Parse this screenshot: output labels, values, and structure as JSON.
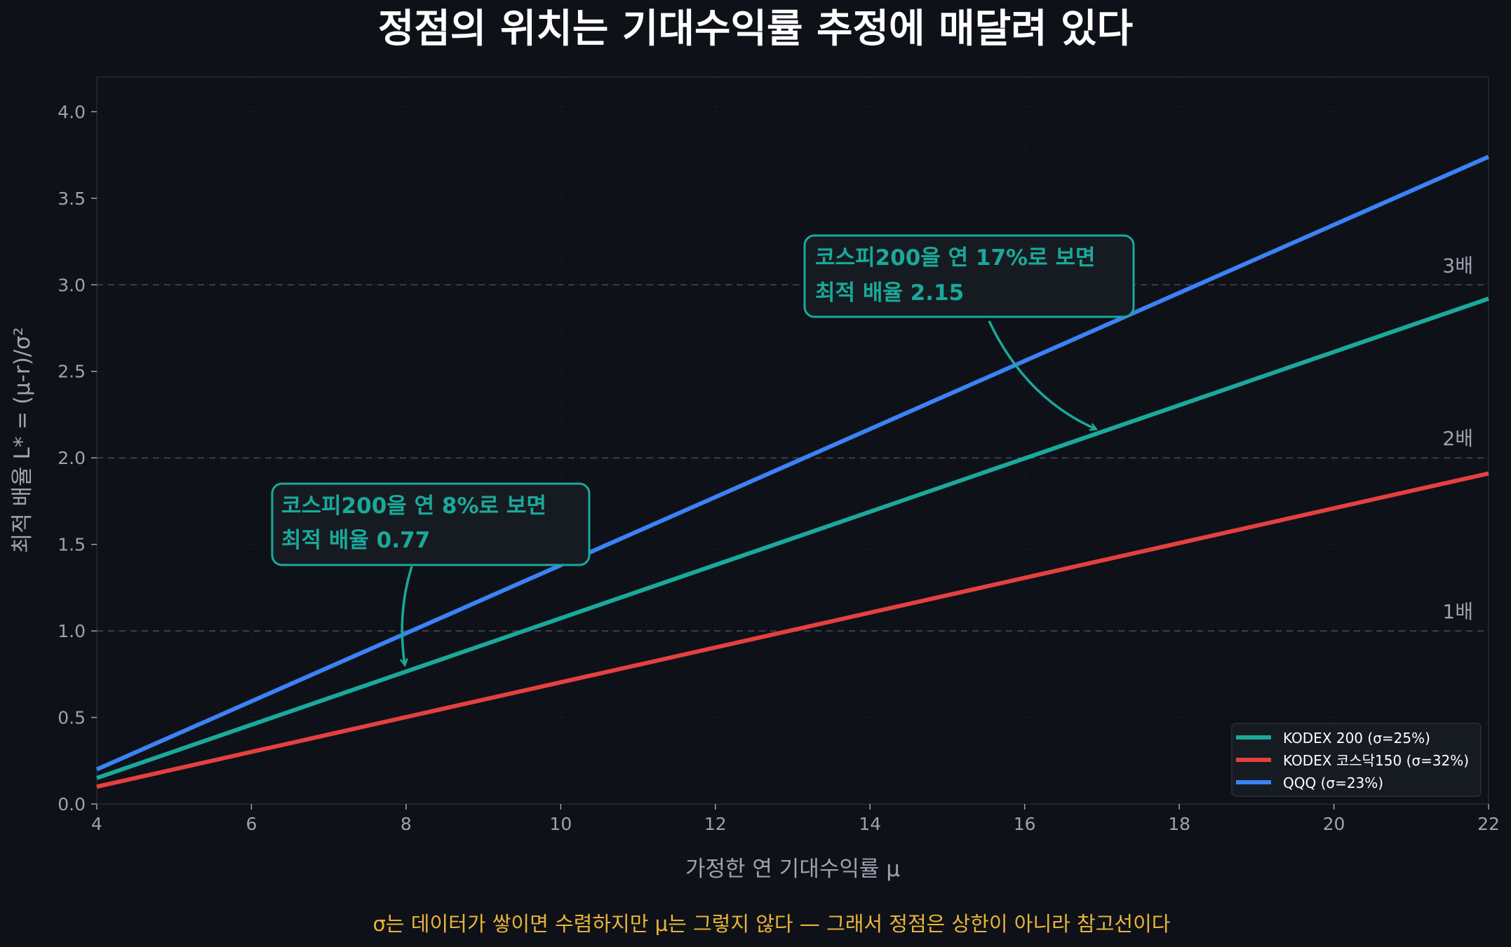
{
  "title": "정점의 위치는 기대수익률 추정에 매달려 있다",
  "footnote": "σ는 데이터가 쌓이면 수렴하지만 μ는 그렇지 않다 — 그래서 정점은 상한이 아니라 참고선이다",
  "colors": {
    "background": "#0e1117",
    "plot_background": "#0e1117",
    "title": "#ffffff",
    "axis_text": "#9ca3af",
    "footnote": "#e8b43a",
    "annotation": "#1aa99a",
    "annotation_box": "#161b22",
    "legend_box": "#161b22",
    "grid": "#2a303a"
  },
  "chart_data": {
    "type": "line",
    "title": "정점의 위치는 기대수익률 추정에 매달려 있다",
    "xlabel": "가정한 연 기대수익률 μ",
    "ylabel": "최적 배율  L* = (μ-r)/σ²",
    "xlim": [
      4,
      22
    ],
    "ylim": [
      0,
      4.2
    ],
    "x_ticks": [
      4,
      6,
      8,
      10,
      12,
      14,
      16,
      18,
      20,
      22
    ],
    "y_ticks": [
      0.0,
      0.5,
      1.0,
      1.5,
      2.0,
      2.5,
      3.0,
      3.5,
      4.0
    ],
    "x_tick_labels": [
      "4",
      "6",
      "8",
      "10",
      "12",
      "14",
      "16",
      "18",
      "20",
      "22"
    ],
    "y_tick_labels": [
      "0.0",
      "0.5",
      "1.0",
      "1.5",
      "2.0",
      "2.5",
      "3.0",
      "3.5",
      "4.0"
    ],
    "grid": true,
    "legend_position": "bottom-right",
    "series": [
      {
        "name": "KODEX 200  (σ=25%)",
        "color": "#1aa99a",
        "x": [
          4,
          22
        ],
        "y": [
          0.15,
          2.92
        ]
      },
      {
        "name": "KODEX 코스닥150  (σ=32%)",
        "color": "#e5403f",
        "x": [
          4,
          22
        ],
        "y": [
          0.1,
          1.91
        ]
      },
      {
        "name": "QQQ  (σ=23%)",
        "color": "#3b82f6",
        "x": [
          4,
          22
        ],
        "y": [
          0.2,
          3.74
        ]
      }
    ],
    "reference_lines": [
      {
        "y": 1,
        "label": "1배"
      },
      {
        "y": 2,
        "label": "2배"
      },
      {
        "y": 3,
        "label": "3배"
      }
    ],
    "annotations": [
      {
        "lines": [
          "코스피200을 연 8%로 보면",
          "최적 배율 0.77"
        ],
        "point": [
          8,
          0.77
        ],
        "anchor": "upper-left"
      },
      {
        "lines": [
          "코스피200을 연 17%로 보면",
          "최적 배율 2.15"
        ],
        "point": [
          17,
          2.15
        ],
        "anchor": "upper-middle"
      }
    ]
  }
}
